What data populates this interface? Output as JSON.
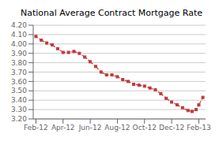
{
  "chart_data": {
    "type": "line",
    "title": "National Average Contract Mortgage Rate",
    "x": [
      0,
      0.4,
      0.8,
      1.2,
      1.6,
      2.0,
      2.4,
      2.8,
      3.2,
      3.6,
      4.0,
      4.4,
      4.8,
      5.2,
      5.6,
      6.0,
      6.4,
      6.8,
      7.2,
      7.6,
      8.0,
      8.4,
      8.8,
      9.2,
      9.6,
      10.0,
      10.4,
      10.8,
      11.2,
      11.5,
      11.8,
      12.0,
      12.3
    ],
    "values": [
      4.08,
      4.04,
      4.01,
      3.99,
      3.95,
      3.91,
      3.91,
      3.92,
      3.9,
      3.86,
      3.81,
      3.76,
      3.7,
      3.67,
      3.67,
      3.65,
      3.62,
      3.6,
      3.57,
      3.56,
      3.55,
      3.53,
      3.51,
      3.47,
      3.42,
      3.38,
      3.35,
      3.32,
      3.29,
      3.28,
      3.3,
      3.35,
      3.43
    ],
    "color": "#c0393b",
    "marker": "square",
    "line_style": "dashed",
    "xlim": [
      -0.2,
      12.5
    ],
    "xticks": [
      {
        "value": 0,
        "label": "Feb-12"
      },
      {
        "value": 2,
        "label": "Apr-12"
      },
      {
        "value": 4,
        "label": "Jun-12"
      },
      {
        "value": 6,
        "label": "Aug-12"
      },
      {
        "value": 8,
        "label": "Oct-12"
      },
      {
        "value": 10,
        "label": "Dec-12"
      },
      {
        "value": 12,
        "label": "Feb-13"
      }
    ],
    "ylim": [
      3.2,
      4.2
    ],
    "yticks": [
      {
        "value": 3.2,
        "label": "3.20"
      },
      {
        "value": 3.3,
        "label": "3.30"
      },
      {
        "value": 3.4,
        "label": "3.40"
      },
      {
        "value": 3.5,
        "label": "3.50"
      },
      {
        "value": 3.6,
        "label": "3.60"
      },
      {
        "value": 3.7,
        "label": "3.70"
      },
      {
        "value": 3.8,
        "label": "3.80"
      },
      {
        "value": 3.9,
        "label": "3.90"
      },
      {
        "value": 4.0,
        "label": "4.00"
      },
      {
        "value": 4.1,
        "label": "4.10"
      },
      {
        "value": 4.2,
        "label": "4.20"
      }
    ],
    "grid": true
  }
}
